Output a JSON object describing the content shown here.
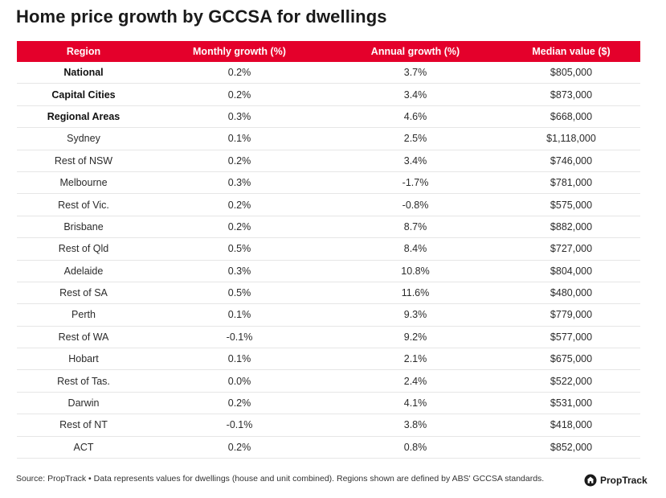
{
  "title": "Home price growth by GCCSA for dwellings",
  "chart_data": {
    "type": "table",
    "title": "Home price growth by GCCSA for dwellings",
    "columns": [
      "Region",
      "Monthly growth (%)",
      "Annual growth (%)",
      "Median value ($)"
    ],
    "rows": [
      {
        "region": "National",
        "monthly": "0.2%",
        "annual": "3.7%",
        "median": "$805,000",
        "bold": true
      },
      {
        "region": "Capital Cities",
        "monthly": "0.2%",
        "annual": "3.4%",
        "median": "$873,000",
        "bold": true
      },
      {
        "region": "Regional Areas",
        "monthly": "0.3%",
        "annual": "4.6%",
        "median": "$668,000",
        "bold": true
      },
      {
        "region": "Sydney",
        "monthly": "0.1%",
        "annual": "2.5%",
        "median": "$1,118,000",
        "bold": false
      },
      {
        "region": "Rest of NSW",
        "monthly": "0.2%",
        "annual": "3.4%",
        "median": "$746,000",
        "bold": false
      },
      {
        "region": "Melbourne",
        "monthly": "0.3%",
        "annual": "-1.7%",
        "median": "$781,000",
        "bold": false
      },
      {
        "region": "Rest of Vic.",
        "monthly": "0.2%",
        "annual": "-0.8%",
        "median": "$575,000",
        "bold": false
      },
      {
        "region": "Brisbane",
        "monthly": "0.2%",
        "annual": "8.7%",
        "median": "$882,000",
        "bold": false
      },
      {
        "region": "Rest of Qld",
        "monthly": "0.5%",
        "annual": "8.4%",
        "median": "$727,000",
        "bold": false
      },
      {
        "region": "Adelaide",
        "monthly": "0.3%",
        "annual": "10.8%",
        "median": "$804,000",
        "bold": false
      },
      {
        "region": "Rest of SA",
        "monthly": "0.5%",
        "annual": "11.6%",
        "median": "$480,000",
        "bold": false
      },
      {
        "region": "Perth",
        "monthly": "0.1%",
        "annual": "9.3%",
        "median": "$779,000",
        "bold": false
      },
      {
        "region": "Rest of WA",
        "monthly": "-0.1%",
        "annual": "9.2%",
        "median": "$577,000",
        "bold": false
      },
      {
        "region": "Hobart",
        "monthly": "0.1%",
        "annual": "2.1%",
        "median": "$675,000",
        "bold": false
      },
      {
        "region": "Rest of Tas.",
        "monthly": "0.0%",
        "annual": "2.4%",
        "median": "$522,000",
        "bold": false
      },
      {
        "region": "Darwin",
        "monthly": "0.2%",
        "annual": "4.1%",
        "median": "$531,000",
        "bold": false
      },
      {
        "region": "Rest of NT",
        "monthly": "-0.1%",
        "annual": "3.8%",
        "median": "$418,000",
        "bold": false
      },
      {
        "region": "ACT",
        "monthly": "0.2%",
        "annual": "0.8%",
        "median": "$852,000",
        "bold": false
      }
    ]
  },
  "footer": {
    "source": "Source: PropTrack • Data represents values for dwellings (house and unit combined). Regions shown are defined by ABS' GCCSA standards.",
    "logo_text": "PropTrack",
    "logo_icon": "proptrack-logo-icon"
  },
  "colors": {
    "header_bg": "#e4002b",
    "header_text": "#ffffff",
    "row_divider": "#e6e6e6"
  }
}
